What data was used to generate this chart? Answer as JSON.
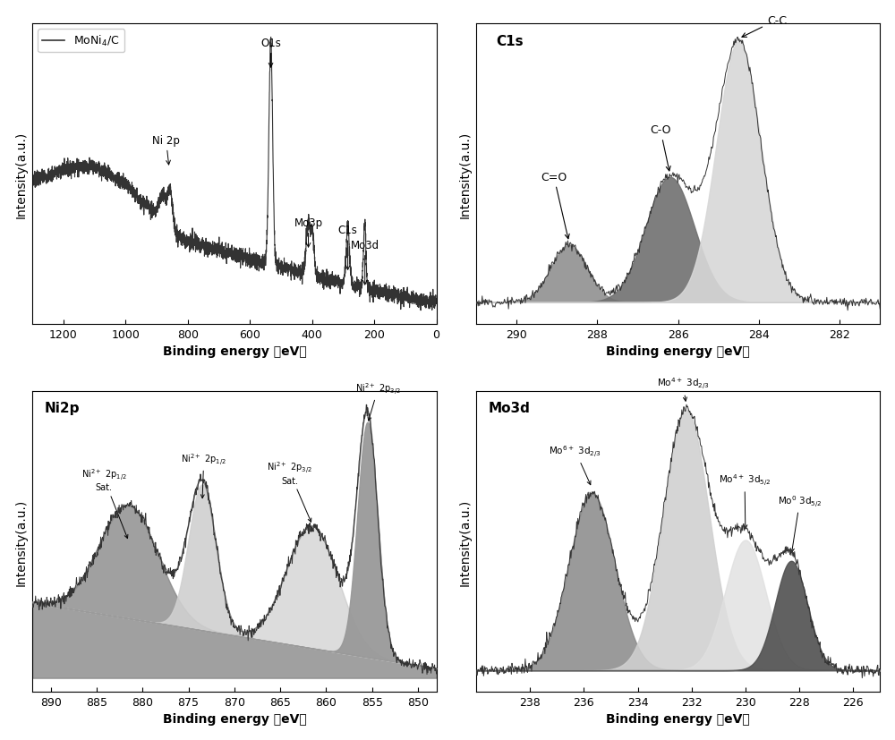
{
  "survey": {
    "legend_label": "MoNi$_4$/C",
    "xlabel": "Binding energy （eV）",
    "ylabel": "Intensity(a.u.)",
    "xticks": [
      1200,
      1000,
      800,
      600,
      400,
      200,
      0
    ]
  },
  "c1s": {
    "xlabel": "Binding energy （eV）",
    "ylabel": "Intensity(a.u.)",
    "xticks": [
      290,
      288,
      286,
      284,
      282
    ],
    "xlim_lo": 291,
    "xlim_hi": 281,
    "peak_centers": [
      288.7,
      286.2,
      284.5
    ],
    "peak_sigmas": [
      0.45,
      0.6,
      0.55
    ],
    "peak_amps": [
      0.22,
      0.48,
      1.0
    ],
    "peak_colors": [
      "#888888",
      "#777777",
      "#cccccc"
    ]
  },
  "ni2p": {
    "xlabel": "Binding energy （eV）",
    "ylabel": "Intensity(a.u.)",
    "xticks": [
      890,
      885,
      880,
      875,
      870,
      865,
      860,
      855,
      850
    ],
    "xlim_lo": 892,
    "xlim_hi": 848,
    "peak_centers": [
      881.5,
      873.5,
      861.5,
      855.5
    ],
    "peak_sigmas": [
      3.2,
      1.5,
      2.8,
      1.1
    ],
    "peak_amps": [
      0.48,
      0.62,
      0.52,
      1.0
    ],
    "peak_colors": [
      "#888888",
      "#cccccc",
      "#bbbbbb",
      "#999999"
    ]
  },
  "mo3d": {
    "xlabel": "Binding energy （eV）",
    "ylabel": "Intensity(a.u.)",
    "xticks": [
      238,
      236,
      234,
      232,
      230,
      228,
      226
    ],
    "xlim_lo": 240,
    "xlim_hi": 225,
    "peak_centers": [
      235.7,
      232.2,
      230.0,
      228.3
    ],
    "peak_sigmas": [
      0.85,
      0.85,
      0.75,
      0.6
    ],
    "peak_amps": [
      0.68,
      1.0,
      0.5,
      0.42
    ],
    "peak_colors": [
      "#888888",
      "#cccccc",
      "#dddddd",
      "#444444"
    ]
  },
  "line_color": "#333333",
  "background_color": "#ffffff"
}
